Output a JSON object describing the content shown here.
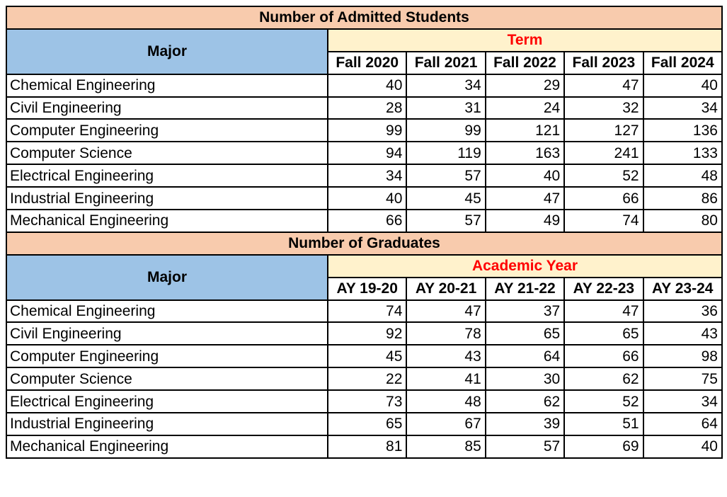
{
  "sections": [
    {
      "title": "Number of Admitted Students",
      "major_header": "Major",
      "group_header": "Term",
      "periods": [
        "Fall 2020",
        "Fall 2021",
        "Fall 2022",
        "Fall 2023",
        "Fall 2024"
      ],
      "rows": [
        {
          "major": "Chemical Engineering",
          "values": [
            40,
            34,
            29,
            47,
            40
          ]
        },
        {
          "major": "Civil Engineering",
          "values": [
            28,
            31,
            24,
            32,
            34
          ]
        },
        {
          "major": "Computer Engineering",
          "values": [
            99,
            99,
            121,
            127,
            136
          ]
        },
        {
          "major": "Computer Science",
          "values": [
            94,
            119,
            163,
            241,
            133
          ]
        },
        {
          "major": "Electrical Engineering",
          "values": [
            34,
            57,
            40,
            52,
            48
          ]
        },
        {
          "major": "Industrial Engineering",
          "values": [
            40,
            45,
            47,
            66,
            86
          ]
        },
        {
          "major": "Mechanical Engineering",
          "values": [
            66,
            57,
            49,
            74,
            80
          ]
        }
      ]
    },
    {
      "title": "Number of Graduates",
      "major_header": "Major",
      "group_header": "Academic Year",
      "periods": [
        "AY 19-20",
        "AY 20-21",
        "AY 21-22",
        "AY 22-23",
        "AY 23-24"
      ],
      "rows": [
        {
          "major": "Chemical Engineering",
          "values": [
            74,
            47,
            37,
            47,
            36
          ]
        },
        {
          "major": "Civil Engineering",
          "values": [
            92,
            78,
            65,
            65,
            43
          ]
        },
        {
          "major": "Computer Engineering",
          "values": [
            45,
            43,
            64,
            66,
            98
          ]
        },
        {
          "major": "Computer Science",
          "values": [
            22,
            41,
            30,
            62,
            75
          ]
        },
        {
          "major": "Electrical Engineering",
          "values": [
            73,
            48,
            62,
            52,
            34
          ]
        },
        {
          "major": "Industrial Engineering",
          "values": [
            65,
            67,
            39,
            51,
            64
          ]
        },
        {
          "major": "Mechanical Engineering",
          "values": [
            81,
            85,
            57,
            69,
            40
          ]
        }
      ]
    }
  ],
  "colors": {
    "title_bg": "#F8CBAD",
    "major_header_bg": "#9DC3E6",
    "group_header_bg": "#FFF2CC",
    "group_header_text": "#FF0000"
  }
}
